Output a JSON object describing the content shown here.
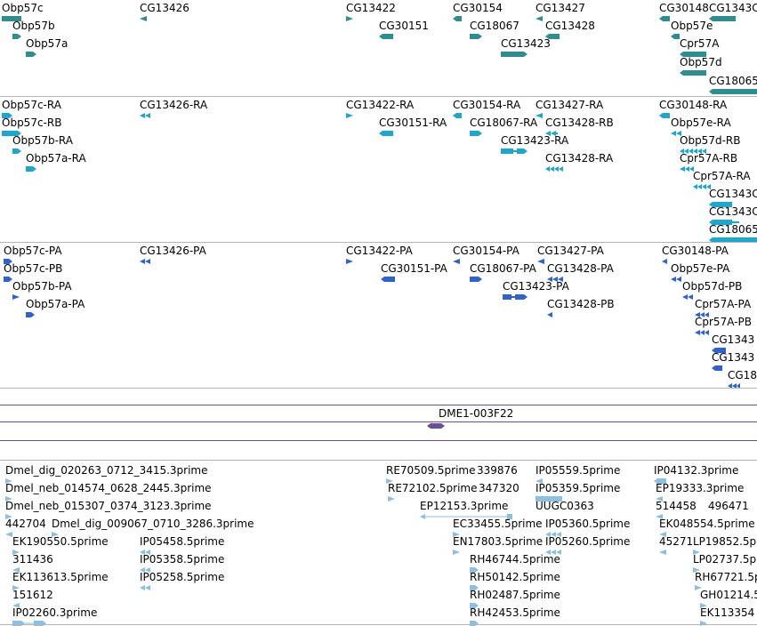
{
  "colors": {
    "gene": "#2f8c8f",
    "transcript": "#1ea6cc",
    "protein": "#2f62cc",
    "band": "#6a4f94",
    "est": "#8cbfe0",
    "separator": "#b4b4b4"
  },
  "tracks": {
    "genes": [
      {
        "label": "Obp57c"
      },
      {
        "label": "Obp57b"
      },
      {
        "label": "Obp57a"
      },
      {
        "label": "CG13426"
      },
      {
        "label": "CG13422"
      },
      {
        "label": "CG30151"
      },
      {
        "label": "CG30154"
      },
      {
        "label": "CG18067"
      },
      {
        "label": "CG13427"
      },
      {
        "label": "CG13428"
      },
      {
        "label": "CG13423"
      },
      {
        "label": "CG30148"
      },
      {
        "label": "CG1343C"
      },
      {
        "label": "Obp57e"
      },
      {
        "label": "Cpr57A"
      },
      {
        "label": "Obp57d"
      },
      {
        "label": "CG18065"
      }
    ],
    "transcripts": [
      {
        "label": "Obp57c-RA"
      },
      {
        "label": "Obp57c-RB"
      },
      {
        "label": "Obp57b-RA"
      },
      {
        "label": "Obp57a-RA"
      },
      {
        "label": "CG13426-RA"
      },
      {
        "label": "CG13422-RA"
      },
      {
        "label": "CG30151-RA"
      },
      {
        "label": "CG30154-RA"
      },
      {
        "label": "CG18067-RA"
      },
      {
        "label": "CG13427-RA"
      },
      {
        "label": "CG13428-RB"
      },
      {
        "label": "CG13423-RA"
      },
      {
        "label": "CG13428-RA"
      },
      {
        "label": "CG30148-RA"
      },
      {
        "label": "Obp57e-RA"
      },
      {
        "label": "Obp57d-RB"
      },
      {
        "label": "Cpr57A-RB"
      },
      {
        "label": "Cpr57A-RA"
      },
      {
        "label": "CG1343C"
      },
      {
        "label": "CG1343C"
      },
      {
        "label": "CG18065"
      }
    ],
    "proteins": [
      {
        "label": "Obp57c-PA"
      },
      {
        "label": "Obp57c-PB"
      },
      {
        "label": "Obp57b-PA"
      },
      {
        "label": "Obp57a-PA"
      },
      {
        "label": "CG13426-PA"
      },
      {
        "label": "CG13422-PA"
      },
      {
        "label": "CG30151-PA"
      },
      {
        "label": "CG30154-PA"
      },
      {
        "label": "CG18067-PA"
      },
      {
        "label": "CG13427-PA"
      },
      {
        "label": "CG13428-PA"
      },
      {
        "label": "CG13423-PA"
      },
      {
        "label": "CG13428-PB"
      },
      {
        "label": "CG30148-PA"
      },
      {
        "label": "Obp57e-PA"
      },
      {
        "label": "Obp57d-PB"
      },
      {
        "label": "Cpr57A-PA"
      },
      {
        "label": "Cpr57A-PB"
      },
      {
        "label": "CG1343"
      },
      {
        "label": "CG1343"
      },
      {
        "label": "CG18"
      }
    ],
    "cytoband": {
      "label": "DME1-003F22"
    },
    "ests": [
      {
        "label": "Dmel_dig_020263_0712_3415.3prime"
      },
      {
        "label": "Dmel_neb_014574_0628_2445.3prime"
      },
      {
        "label": "Dmel_neb_015307_0374_3123.3prime"
      },
      {
        "label": "442704"
      },
      {
        "label": "Dmel_dig_009067_0710_3286.3prime"
      },
      {
        "label": "EK190550.5prime"
      },
      {
        "label": "311436"
      },
      {
        "label": "EK113613.5prime"
      },
      {
        "label": "151612"
      },
      {
        "label": "IP02260.3prime"
      },
      {
        "label": "IP05458.5prime"
      },
      {
        "label": "IP05358.5prime"
      },
      {
        "label": "IP05258.5prime"
      },
      {
        "label": "RE70509.5prime"
      },
      {
        "label": "339876"
      },
      {
        "label": "RE72102.5prime"
      },
      {
        "label": "347320"
      },
      {
        "label": "EP12153.3prime"
      },
      {
        "label": "EC33455.5prime"
      },
      {
        "label": "EN17803.5prime"
      },
      {
        "label": "RH46744.5prime"
      },
      {
        "label": "RH50142.5prime"
      },
      {
        "label": "RH02487.5prime"
      },
      {
        "label": "RH42453.5prime"
      },
      {
        "label": "IP05559.5prime"
      },
      {
        "label": "IP05359.5prime"
      },
      {
        "label": "UUGC0363"
      },
      {
        "label": "IP05360.5prime"
      },
      {
        "label": "IP05260.5prime"
      },
      {
        "label": "IP04132.3prime"
      },
      {
        "label": "EP19333.3prime"
      },
      {
        "label": "514458"
      },
      {
        "label": "496471"
      },
      {
        "label": "EK048554.5prime"
      },
      {
        "label": "45271"
      },
      {
        "label": "LP19852.5p"
      },
      {
        "label": "LP02737.5p"
      },
      {
        "label": "RH67721.5p"
      },
      {
        "label": "GH01214.5"
      },
      {
        "label": "EK113354"
      }
    ]
  }
}
